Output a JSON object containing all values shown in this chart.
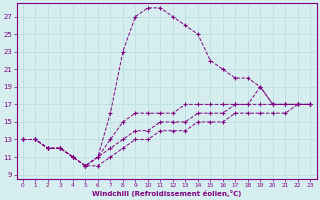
{
  "xlabel": "Windchill (Refroidissement éolien,°C)",
  "background_color": "#d6eef0",
  "line_color": "#800080",
  "xlim": [
    -0.5,
    23.5
  ],
  "ylim": [
    8.5,
    28.5
  ],
  "xticks": [
    0,
    1,
    2,
    3,
    4,
    5,
    6,
    7,
    8,
    9,
    10,
    11,
    12,
    13,
    14,
    15,
    16,
    17,
    18,
    19,
    20,
    21,
    22,
    23
  ],
  "yticks": [
    9,
    11,
    13,
    15,
    17,
    19,
    21,
    23,
    25,
    27
  ],
  "lines": [
    {
      "x": [
        0,
        1,
        2,
        3,
        4,
        5,
        6,
        7,
        8,
        9,
        10,
        11,
        12,
        13,
        14,
        15,
        16,
        17,
        18,
        19,
        20,
        21,
        22,
        23
      ],
      "y": [
        13,
        13,
        12,
        12,
        11,
        10,
        11,
        16,
        23,
        27,
        28,
        28,
        27,
        26,
        25,
        22,
        21,
        20,
        20,
        19,
        17,
        17,
        17,
        17
      ]
    },
    {
      "x": [
        0,
        1,
        2,
        3,
        4,
        5,
        6,
        7,
        8,
        9,
        10,
        11,
        12,
        13,
        14,
        15,
        16,
        17,
        18,
        19,
        20,
        21,
        22,
        23
      ],
      "y": [
        13,
        13,
        12,
        12,
        11,
        10,
        11,
        13,
        15,
        16,
        16,
        16,
        16,
        17,
        17,
        17,
        17,
        17,
        17,
        19,
        17,
        17,
        17,
        17
      ]
    },
    {
      "x": [
        0,
        1,
        2,
        3,
        4,
        5,
        6,
        7,
        8,
        9,
        10,
        11,
        12,
        13,
        14,
        15,
        16,
        17,
        18,
        19,
        20,
        21,
        22,
        23
      ],
      "y": [
        13,
        13,
        12,
        12,
        11,
        10,
        11,
        12,
        13,
        14,
        14,
        15,
        15,
        15,
        16,
        16,
        16,
        17,
        17,
        17,
        17,
        17,
        17,
        17
      ]
    },
    {
      "x": [
        0,
        1,
        2,
        3,
        4,
        5,
        6,
        7,
        8,
        9,
        10,
        11,
        12,
        13,
        14,
        15,
        16,
        17,
        18,
        19,
        20,
        21,
        22,
        23
      ],
      "y": [
        13,
        13,
        12,
        12,
        11,
        10,
        10,
        11,
        12,
        13,
        13,
        14,
        14,
        14,
        15,
        15,
        15,
        16,
        16,
        16,
        16,
        16,
        17,
        17
      ]
    }
  ]
}
